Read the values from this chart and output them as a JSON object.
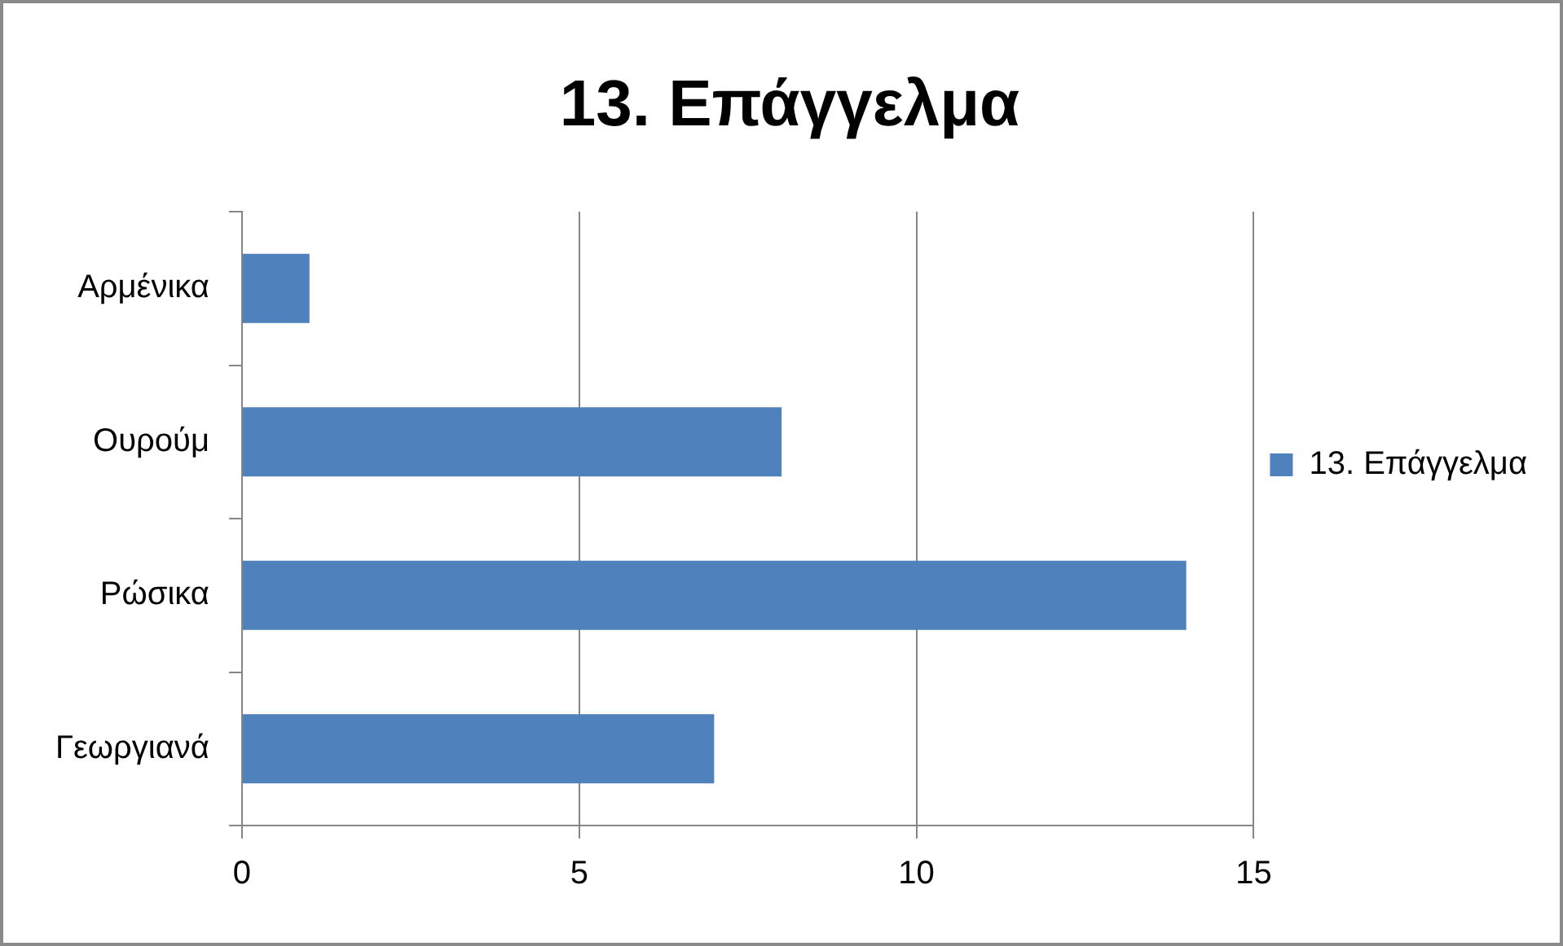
{
  "chart_data": {
    "type": "bar",
    "orientation": "horizontal",
    "title": "13. Επάγγελμα",
    "categories": [
      "Αρμένικα",
      "Ουρούμ",
      "Ρώσικα",
      "Γεωργιανά"
    ],
    "series": [
      {
        "name": "13. Επάγγελμα",
        "color": "#4f81bd",
        "values": [
          1,
          8,
          14,
          7
        ]
      }
    ],
    "xlim": [
      0,
      15
    ],
    "xticks": [
      0,
      5,
      10,
      15
    ],
    "grid": "x",
    "legend": "right"
  }
}
